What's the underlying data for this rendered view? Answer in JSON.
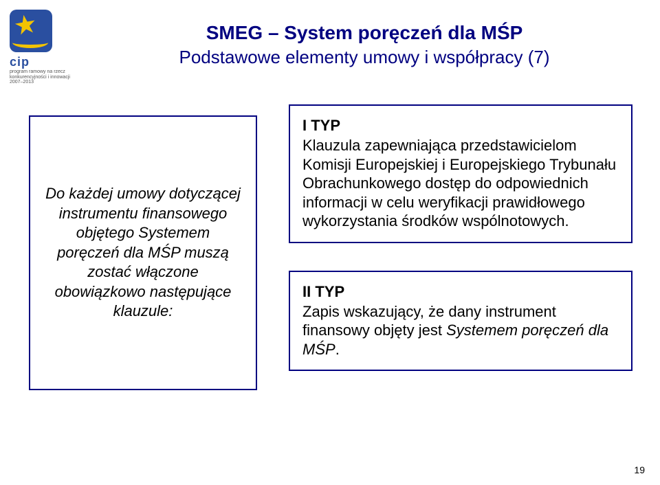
{
  "logo": {
    "abbr": "cip",
    "line1": "program ramowy na rzecz",
    "line2": "konkurencyjności i innowacji",
    "years": "2007–2013"
  },
  "title": {
    "main": "SMEG – System poręczeń dla MŚP",
    "sub": "Podstawowe elementy umowy i współpracy (7)"
  },
  "leftBox": {
    "text": "Do każdej umowy dotyczącej instrumentu finansowego objętego Systemem poręczeń dla MŚP muszą zostać włączone obowiązkowo następujące klauzule:"
  },
  "box1": {
    "typ": "I TYP",
    "text": "Klauzula zapewniająca przedstawicielom Komisji Europejskiej i Europejskiego Trybunału Obrachunkowego dostęp do odpowiednich informacji w celu weryfikacji prawidłowego wykorzystania środków wspólnotowych."
  },
  "box2": {
    "typ": "II TYP",
    "prefix": "Zapis wskazujący, że dany instrument finansowy objęty jest ",
    "ital": "Systemem poręczeń dla MŚP",
    "suffix": "."
  },
  "pageNumber": "19",
  "colors": {
    "navy": "#000080",
    "logoBlue": "#2a4fa0",
    "logoYellow": "#f2c300"
  }
}
